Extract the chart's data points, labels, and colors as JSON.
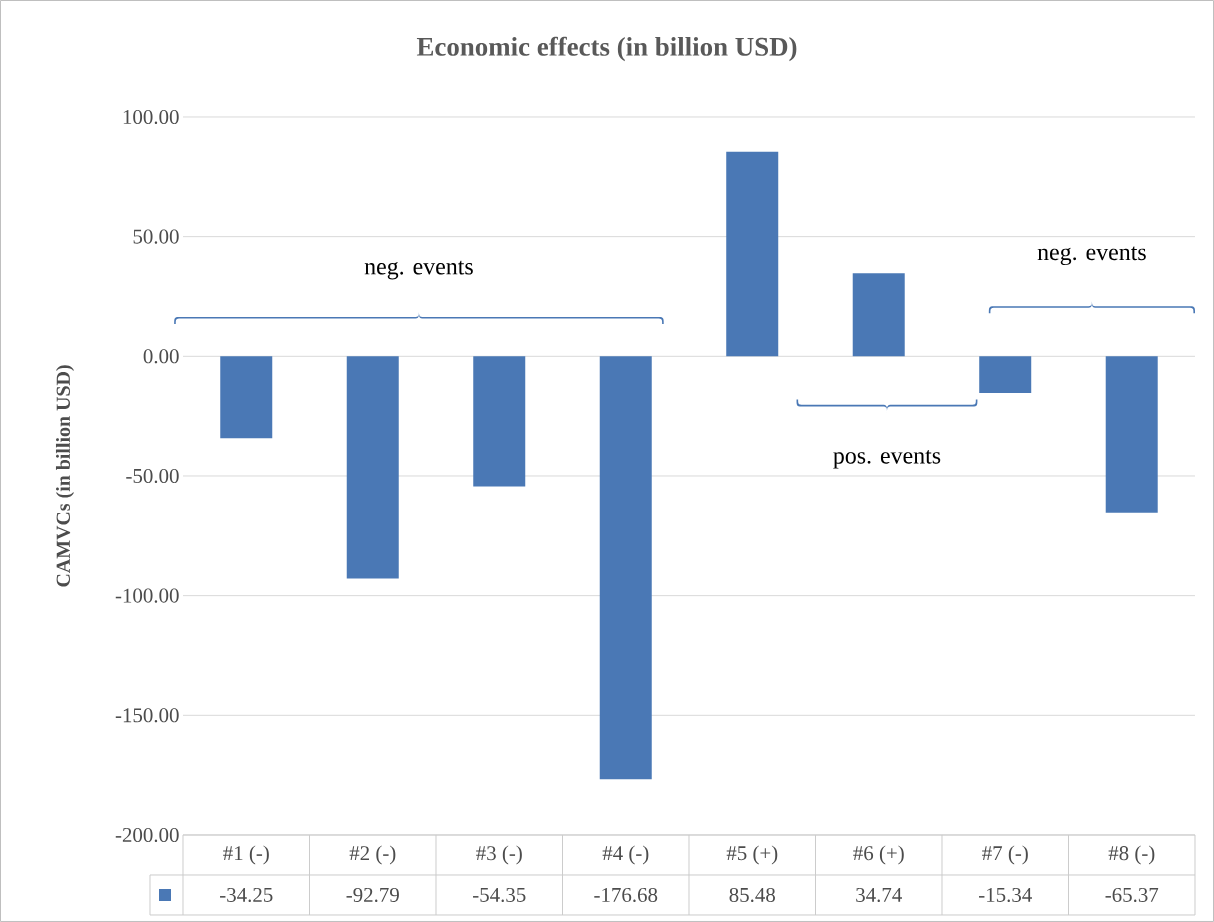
{
  "chart_data": {
    "type": "bar",
    "title": "Economic effects (in billion USD)",
    "ylabel": "CAMVCs (in billion USD)",
    "categories": [
      "#1 (-)",
      "#2 (-)",
      "#3 (-)",
      "#4 (-)",
      "#5 (+)",
      "#6 (+)",
      "#7 (-)",
      "#8 (-)"
    ],
    "values": [
      -34.25,
      -92.79,
      -54.35,
      -176.68,
      85.48,
      34.74,
      -15.34,
      -65.37
    ],
    "value_labels": [
      "-34.25",
      "-92.79",
      "-54.35",
      "-176.68",
      "85.48",
      "34.74",
      "-15.34",
      "-65.37"
    ],
    "color": "#4a78b5",
    "ylim": [
      -200,
      100
    ],
    "yticks": [
      {
        "value": -200,
        "label": "-200.00"
      },
      {
        "value": -150,
        "label": "-150.00"
      },
      {
        "value": -100,
        "label": "-100.00"
      },
      {
        "value": -50,
        "label": "-50.00"
      },
      {
        "value": 0,
        "label": "0.00"
      },
      {
        "value": 50,
        "label": "50.00"
      },
      {
        "value": 100,
        "label": "100.00"
      }
    ],
    "grid": "y",
    "annotations": [
      "neg. events",
      "pos. events",
      "neg. events"
    ]
  }
}
